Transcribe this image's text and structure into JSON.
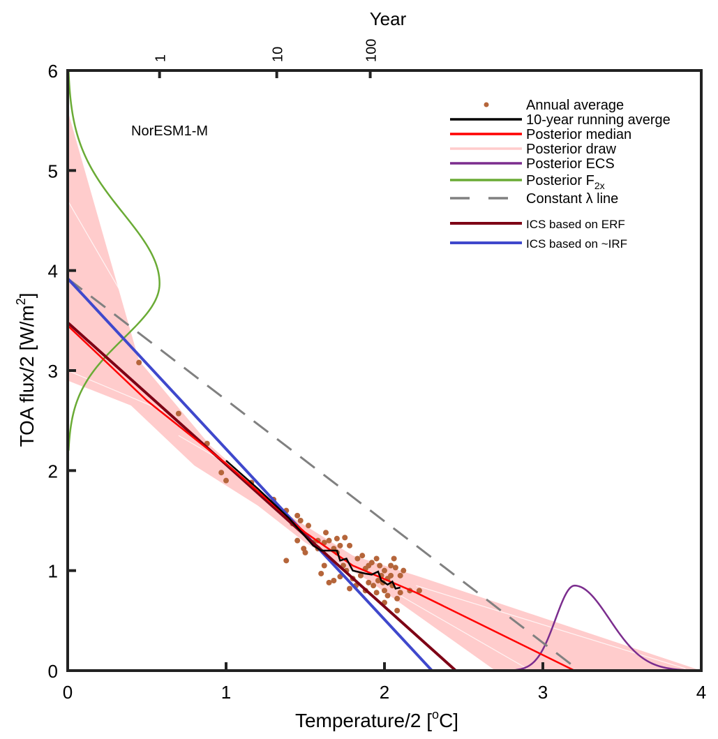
{
  "chart_data": {
    "type": "line",
    "title": "",
    "annotation": "NorESM1-M",
    "xlabel": "Temperature/2 [°C]",
    "xlabel_parts": {
      "pre": "Temperature/2 [",
      "sup": "o",
      "post": "C]"
    },
    "ylabel": "TOA flux/2 [W/m²]",
    "ylabel_parts": {
      "pre": "TOA flux/2 [W/m",
      "sup": "2",
      "post": "]"
    },
    "top_axis_label": "Year",
    "xlim": [
      0,
      4
    ],
    "ylim": [
      0,
      6
    ],
    "x_ticks": [
      "0",
      "1",
      "2",
      "3",
      "4"
    ],
    "y_ticks": [
      "0",
      "1",
      "2",
      "3",
      "4",
      "5",
      "6"
    ],
    "top_ticks": [
      {
        "label": "1",
        "temperature": 0.58
      },
      {
        "label": "10",
        "temperature": 1.32
      },
      {
        "label": "100",
        "temperature": 1.91
      }
    ],
    "grid": false,
    "legend_position": "top-right",
    "legend": [
      {
        "label": "Annual average",
        "type": "dot",
        "color": "#b5653a"
      },
      {
        "label": "10-year running averge",
        "type": "line",
        "color": "#000000"
      },
      {
        "label": "Posterior median",
        "type": "line",
        "color": "#ff0000"
      },
      {
        "label": "Posterior draw",
        "type": "line",
        "color": "#ffcccc"
      },
      {
        "label": "Posterior ECS",
        "type": "line",
        "color": "#7b2d8e"
      },
      {
        "label": "Posterior F",
        "sub": "2x",
        "type": "line",
        "color": "#6aab35"
      },
      {
        "label": "Constant λ line",
        "type": "dash",
        "color": "#808080"
      },
      {
        "label": "ICS based on ERF",
        "type": "line",
        "color": "#7d0015"
      },
      {
        "label": "ICS based on ~IRF",
        "type": "line",
        "color": "#3f48cc"
      }
    ],
    "series": [
      {
        "name": "Posterior median",
        "color": "#ff0000",
        "x": [
          0,
          0.5,
          1.0,
          1.5,
          1.8,
          2.2,
          3.2
        ],
        "y": [
          3.45,
          2.7,
          2.07,
          1.38,
          1.05,
          0.78,
          0.0
        ]
      },
      {
        "name": "10-year running averge",
        "color": "#000000",
        "x": [
          1.0,
          1.2,
          1.4,
          1.55,
          1.6,
          1.65,
          1.7,
          1.72,
          1.76,
          1.8,
          1.88,
          1.92,
          1.96,
          1.98,
          2.02,
          2.05,
          2.07,
          2.1
        ],
        "y": [
          2.1,
          1.82,
          1.52,
          1.25,
          1.2,
          1.2,
          1.2,
          1.1,
          1.12,
          1.0,
          0.97,
          0.96,
          0.99,
          0.9,
          0.86,
          0.89,
          0.82,
          0.83
        ]
      },
      {
        "name": "ICS based on ERF",
        "color": "#7d0015",
        "x": [
          0,
          2.45
        ],
        "y": [
          3.48,
          0.0
        ]
      },
      {
        "name": "ICS based on ~IRF",
        "color": "#3f48cc",
        "x": [
          0,
          2.3
        ],
        "y": [
          3.92,
          0.0
        ]
      },
      {
        "name": "Constant λ line",
        "color": "#808080",
        "dashed": true,
        "x": [
          0,
          3.23
        ],
        "y": [
          3.92,
          0.0
        ]
      }
    ],
    "posterior_draws_envelope": {
      "upper": {
        "x": [
          0,
          0.45,
          0.9,
          1.4,
          1.8,
          2.2,
          4.0
        ],
        "y": [
          5.6,
          3.1,
          2.25,
          1.55,
          1.15,
          0.95,
          0.0
        ]
      },
      "lower": {
        "x": [
          0,
          0.4,
          0.8,
          1.2,
          1.5,
          1.9,
          2.7
        ],
        "y": [
          2.9,
          2.65,
          2.05,
          1.65,
          1.28,
          0.9,
          0.0
        ]
      }
    },
    "posterior_ecs_density": {
      "peak_temperature": 3.2,
      "peak_height": 0.85,
      "range": [
        2.6,
        4.0
      ]
    },
    "posterior_f2x_density": {
      "peak_flux": 3.87,
      "peak_temperature_extent": 0.58,
      "range": [
        2.2,
        6.0
      ]
    },
    "annual_average_points": [
      [
        0.45,
        3.08
      ],
      [
        0.7,
        2.57
      ],
      [
        0.88,
        2.27
      ],
      [
        0.97,
        1.98
      ],
      [
        1.0,
        1.9
      ],
      [
        1.16,
        1.88
      ],
      [
        1.3,
        1.71
      ],
      [
        1.38,
        1.6
      ],
      [
        1.45,
        1.55
      ],
      [
        1.42,
        1.47
      ],
      [
        1.47,
        1.5
      ],
      [
        1.52,
        1.45
      ],
      [
        1.38,
        1.1
      ],
      [
        1.45,
        1.3
      ],
      [
        1.49,
        1.22
      ],
      [
        1.5,
        1.18
      ],
      [
        1.55,
        1.28
      ],
      [
        1.58,
        1.22
      ],
      [
        1.58,
        1.3
      ],
      [
        1.62,
        1.28
      ],
      [
        1.65,
        1.3
      ],
      [
        1.63,
        1.38
      ],
      [
        1.7,
        1.32
      ],
      [
        1.72,
        1.25
      ],
      [
        1.68,
        1.22
      ],
      [
        1.7,
        1.18
      ],
      [
        1.75,
        1.33
      ],
      [
        1.78,
        1.25
      ],
      [
        1.74,
        1.05
      ],
      [
        1.76,
        1.0
      ],
      [
        1.62,
        1.05
      ],
      [
        1.6,
        0.97
      ],
      [
        1.65,
        0.88
      ],
      [
        1.68,
        0.9
      ],
      [
        1.72,
        0.94
      ],
      [
        1.78,
        0.82
      ],
      [
        1.82,
        0.85
      ],
      [
        1.83,
        1.12
      ],
      [
        1.86,
        1.15
      ],
      [
        1.88,
        1.02
      ],
      [
        1.9,
        1.05
      ],
      [
        1.92,
        1.08
      ],
      [
        1.95,
        1.12
      ],
      [
        1.97,
        1.05
      ],
      [
        1.98,
        0.95
      ],
      [
        2.0,
        1.0
      ],
      [
        2.02,
        0.92
      ],
      [
        2.04,
        1.05
      ],
      [
        2.06,
        1.12
      ],
      [
        2.07,
        1.03
      ],
      [
        1.9,
        0.88
      ],
      [
        1.93,
        0.85
      ],
      [
        1.96,
        0.9
      ],
      [
        2.0,
        0.8
      ],
      [
        2.02,
        0.75
      ],
      [
        2.05,
        0.85
      ],
      [
        2.08,
        0.72
      ],
      [
        2.1,
        0.78
      ],
      [
        1.85,
        0.95
      ],
      [
        1.8,
        0.92
      ],
      [
        2.1,
        0.95
      ],
      [
        2.12,
        1.0
      ],
      [
        1.95,
        0.78
      ],
      [
        2.0,
        0.68
      ],
      [
        2.08,
        0.6
      ],
      [
        2.16,
        0.8
      ],
      [
        2.22,
        0.8
      ],
      [
        1.88,
        0.8
      ],
      [
        1.99,
        0.88
      ],
      [
        2.04,
        0.95
      ]
    ]
  }
}
